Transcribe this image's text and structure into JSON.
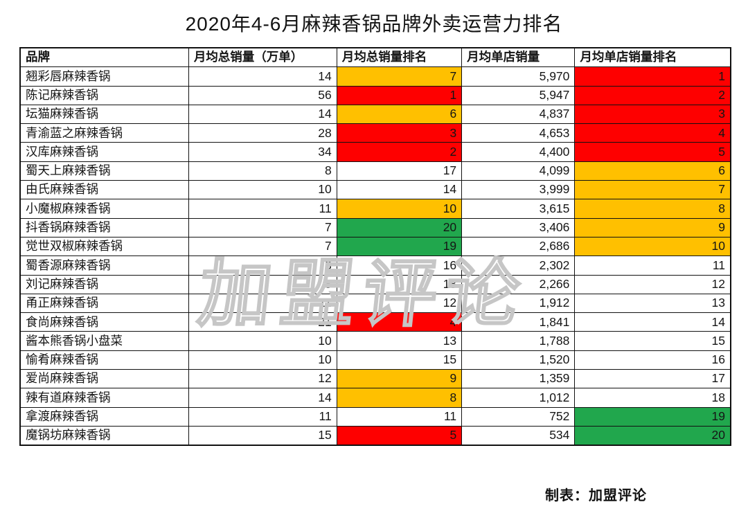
{
  "title": "2020年4-6月麻辣香锅品牌外卖运营力排名",
  "credit": "制表：加盟评论",
  "watermark": "加盟评论",
  "colors": {
    "red": "#FE0000",
    "orange": "#FFC000",
    "green": "#21A74D",
    "none": "transparent"
  },
  "chart_data": {
    "type": "table",
    "title": "2020年4-6月麻辣香锅品牌外卖运营力排名",
    "columns": [
      "品牌",
      "月均总销量（万单）",
      "月均总销量排名",
      "月均单店销量",
      "月均单店销量排名"
    ],
    "rows": [
      {
        "brand": "翘彩唇麻辣香锅",
        "total_sales": "14",
        "total_rank": "7",
        "total_rank_bg": "orange",
        "store_sales": "5,970",
        "store_rank": "1",
        "store_rank_bg": "red"
      },
      {
        "brand": "陈记麻辣香锅",
        "total_sales": "56",
        "total_rank": "1",
        "total_rank_bg": "red",
        "store_sales": "5,947",
        "store_rank": "2",
        "store_rank_bg": "red"
      },
      {
        "brand": "坛猫麻辣香锅",
        "total_sales": "14",
        "total_rank": "6",
        "total_rank_bg": "orange",
        "store_sales": "4,837",
        "store_rank": "3",
        "store_rank_bg": "red"
      },
      {
        "brand": "青渝蓝之麻辣香锅",
        "total_sales": "28",
        "total_rank": "3",
        "total_rank_bg": "red",
        "store_sales": "4,653",
        "store_rank": "4",
        "store_rank_bg": "red"
      },
      {
        "brand": "汉库麻辣香锅",
        "total_sales": "34",
        "total_rank": "2",
        "total_rank_bg": "red",
        "store_sales": "4,400",
        "store_rank": "5",
        "store_rank_bg": "red"
      },
      {
        "brand": "蜀天上麻辣香锅",
        "total_sales": "8",
        "total_rank": "17",
        "total_rank_bg": "none",
        "store_sales": "4,099",
        "store_rank": "6",
        "store_rank_bg": "orange"
      },
      {
        "brand": "由氏麻辣香锅",
        "total_sales": "10",
        "total_rank": "14",
        "total_rank_bg": "none",
        "store_sales": "3,999",
        "store_rank": "7",
        "store_rank_bg": "orange"
      },
      {
        "brand": "小魔椒麻辣香锅",
        "total_sales": "11",
        "total_rank": "10",
        "total_rank_bg": "orange",
        "store_sales": "3,615",
        "store_rank": "8",
        "store_rank_bg": "orange"
      },
      {
        "brand": "抖香锅麻辣香锅",
        "total_sales": "7",
        "total_rank": "20",
        "total_rank_bg": "green",
        "store_sales": "3,406",
        "store_rank": "9",
        "store_rank_bg": "orange"
      },
      {
        "brand": "觉世双椒麻辣香锅",
        "total_sales": "7",
        "total_rank": "19",
        "total_rank_bg": "green",
        "store_sales": "2,686",
        "store_rank": "10",
        "store_rank_bg": "orange"
      },
      {
        "brand": "蜀香源麻辣香锅",
        "total_sales": "8",
        "total_rank": "16",
        "total_rank_bg": "none",
        "store_sales": "2,302",
        "store_rank": "11",
        "store_rank_bg": "none"
      },
      {
        "brand": "刘记麻辣香锅",
        "total_sales": "8",
        "total_rank": "18",
        "total_rank_bg": "none",
        "store_sales": "2,266",
        "store_rank": "12",
        "store_rank_bg": "none"
      },
      {
        "brand": "甬正麻辣香锅",
        "total_sales": "11",
        "total_rank": "12",
        "total_rank_bg": "none",
        "store_sales": "1,912",
        "store_rank": "13",
        "store_rank_bg": "none"
      },
      {
        "brand": "食尚麻辣香锅",
        "total_sales": "21",
        "total_rank": "4",
        "total_rank_bg": "red",
        "store_sales": "1,841",
        "store_rank": "14",
        "store_rank_bg": "none"
      },
      {
        "brand": "酱本熊香锅小盘菜",
        "total_sales": "10",
        "total_rank": "13",
        "total_rank_bg": "none",
        "store_sales": "1,788",
        "store_rank": "15",
        "store_rank_bg": "none"
      },
      {
        "brand": "愉肴麻辣香锅",
        "total_sales": "10",
        "total_rank": "15",
        "total_rank_bg": "none",
        "store_sales": "1,520",
        "store_rank": "16",
        "store_rank_bg": "none"
      },
      {
        "brand": "爱尚麻辣香锅",
        "total_sales": "12",
        "total_rank": "9",
        "total_rank_bg": "orange",
        "store_sales": "1,359",
        "store_rank": "17",
        "store_rank_bg": "none"
      },
      {
        "brand": "辣有道麻辣香锅",
        "total_sales": "14",
        "total_rank": "8",
        "total_rank_bg": "orange",
        "store_sales": "1,012",
        "store_rank": "18",
        "store_rank_bg": "none"
      },
      {
        "brand": "拿渡麻辣香锅",
        "total_sales": "11",
        "total_rank": "11",
        "total_rank_bg": "none",
        "store_sales": "752",
        "store_rank": "19",
        "store_rank_bg": "green"
      },
      {
        "brand": "魔锅坊麻辣香锅",
        "total_sales": "15",
        "total_rank": "5",
        "total_rank_bg": "red",
        "store_sales": "534",
        "store_rank": "20",
        "store_rank_bg": "green"
      }
    ]
  }
}
